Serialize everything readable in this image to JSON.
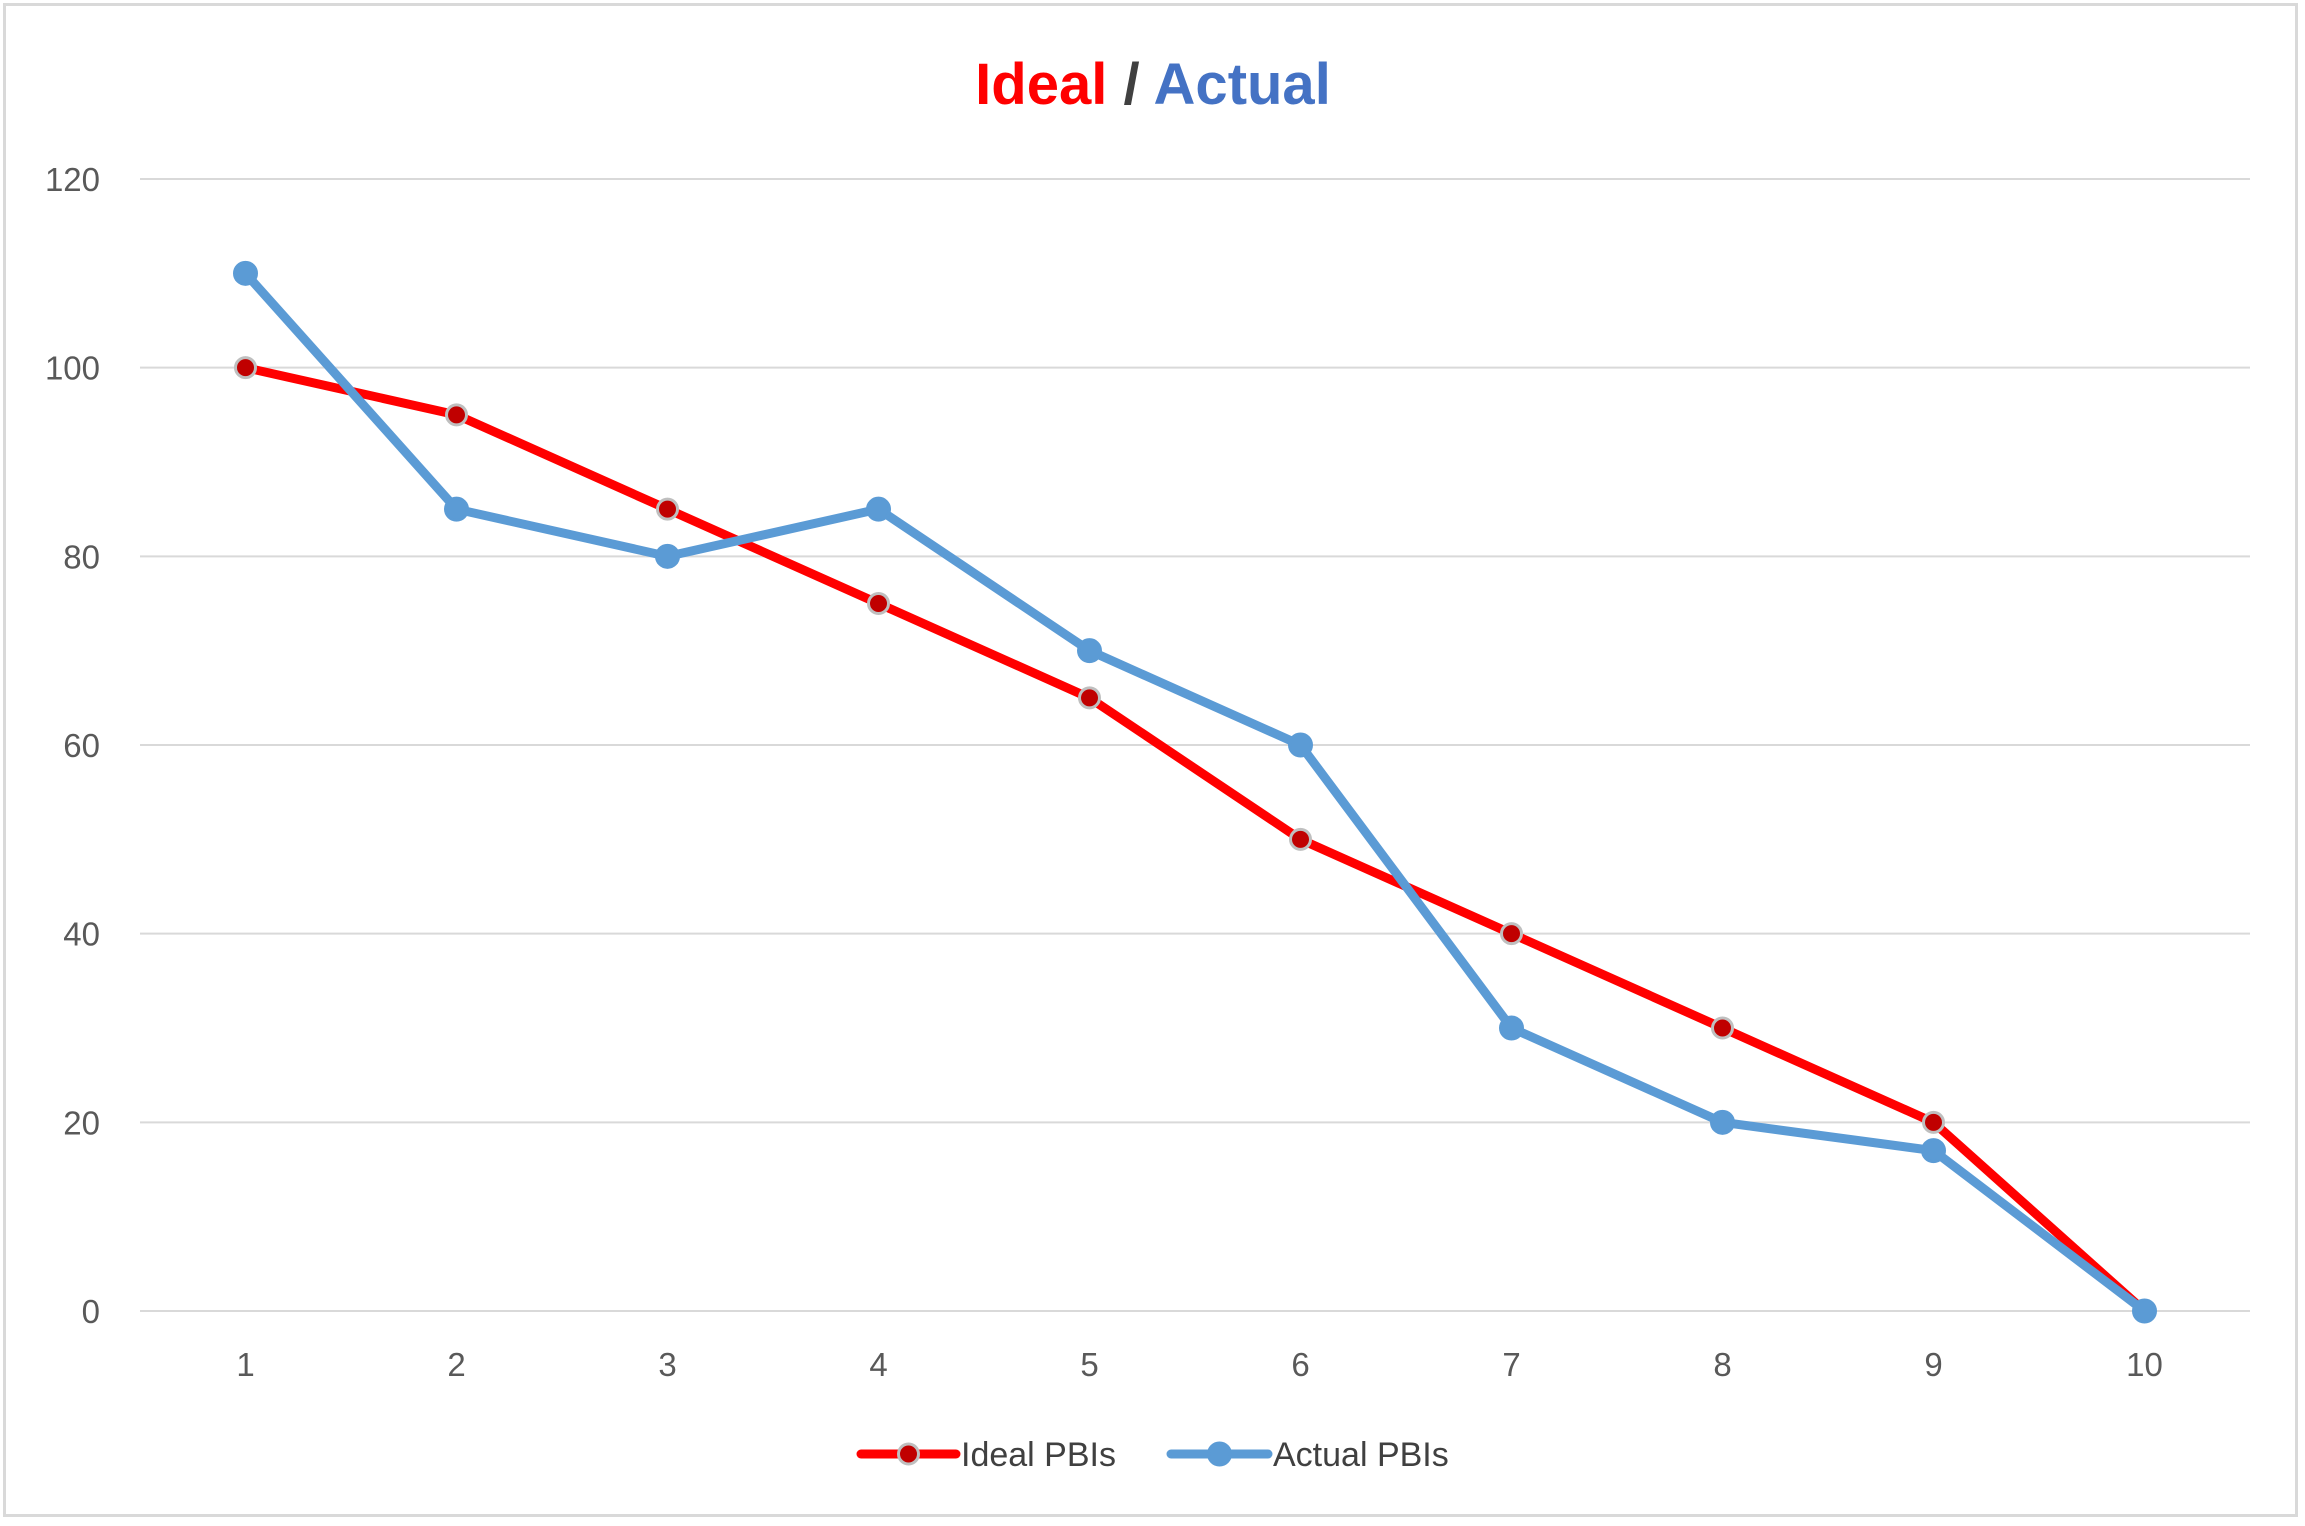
{
  "chart_data": {
    "type": "line",
    "title": {
      "part1": "Ideal",
      "separator": " / ",
      "part2": "Actual",
      "color1": "#ff0000",
      "separator_color": "#404040",
      "color2": "#4472c4"
    },
    "xlabel": "",
    "ylabel": "",
    "categories": [
      "1",
      "2",
      "3",
      "4",
      "5",
      "6",
      "7",
      "8",
      "9",
      "10"
    ],
    "ylim": [
      0,
      120
    ],
    "yticks": [
      0,
      20,
      40,
      60,
      80,
      100,
      120
    ],
    "grid": true,
    "legend_position": "bottom",
    "series": [
      {
        "name": "Ideal PBIs",
        "values": [
          100,
          95,
          85,
          75,
          65,
          50,
          40,
          30,
          20,
          0
        ],
        "color": "#ff0000",
        "marker_fill": "#c00000",
        "marker_stroke": "#bfbfbf"
      },
      {
        "name": "Actual PBIs",
        "values": [
          110,
          85,
          80,
          85,
          70,
          60,
          30,
          20,
          17,
          0
        ],
        "color": "#5b9bd5",
        "marker_fill": "#5b9bd5",
        "marker_stroke": "#5b9bd5"
      }
    ]
  }
}
